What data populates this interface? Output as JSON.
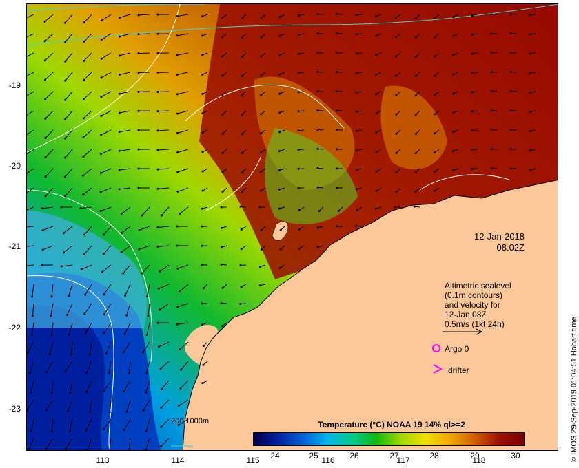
{
  "axes": {
    "y_ticks": [
      "-19",
      "-20",
      "-21",
      "-22",
      "-23"
    ],
    "x_ticks": [
      "113",
      "114",
      "115",
      "116",
      "117",
      "118"
    ]
  },
  "map": {
    "date_line1": "12-Jan-2018",
    "date_line2": "08:02Z",
    "altimetry_lines": [
      "Altimetric sealevel",
      "(0.1m contours)",
      "and velocity for",
      "12-Jan 08Z",
      "0.5m/s (1kt 24h)"
    ],
    "argo_label": "Argo 0",
    "drifter_label": "drifter",
    "bathy_label": "200  1000m"
  },
  "colorbar": {
    "title": "Temperature (°C) NOAA 19 14% ql>=2",
    "ticks": [
      "24",
      "25",
      "26",
      "27",
      "28",
      "29",
      "30"
    ],
    "colors": [
      "#00004a",
      "#0022a0",
      "#0060d8",
      "#00b4e8",
      "#00c890",
      "#10b810",
      "#a0d800",
      "#f0e000",
      "#f0a800",
      "#d06000",
      "#a01000",
      "#780000"
    ]
  },
  "credit": "© IMOS 29-Sep-2019 01:04:51 Hobart time",
  "colors": {
    "land": "#fcc89a",
    "magenta": "#ff00ff",
    "contour": "#ffffff",
    "isobath": "#40d8d8"
  }
}
